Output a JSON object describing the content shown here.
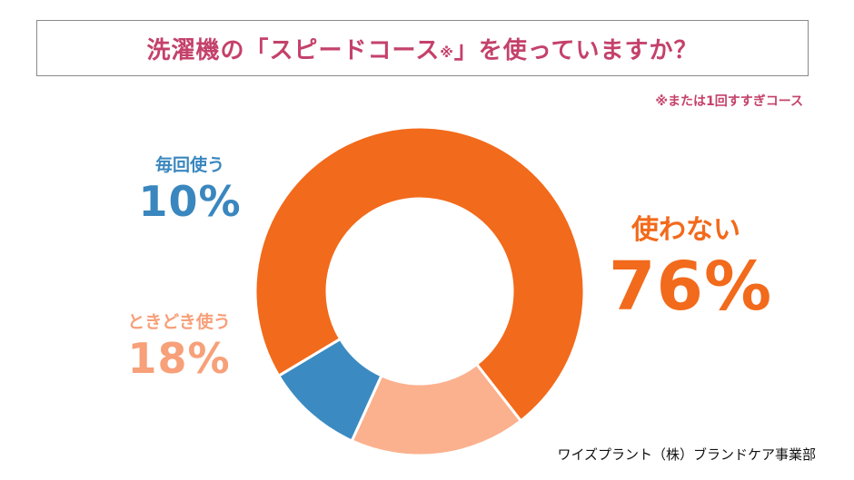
{
  "title": {
    "text": "洗濯機の「スピードコース",
    "mark": "※",
    "close": "」を使っていますか？"
  },
  "note": "※または1回すすぎコース",
  "source": "ワイズプラント（株）ブランドケア事業部",
  "chart_data": {
    "type": "pie",
    "donut": true,
    "title": "洗濯機の「スピードコース※」を使っていますか？",
    "slices": [
      {
        "label": "使わない",
        "value": 76,
        "value_label": "76%",
        "color": "#f26a1b"
      },
      {
        "label": "ときどき使う",
        "value": 18,
        "value_label": "18%",
        "color": "#fbb18e"
      },
      {
        "label": "毎回使う",
        "value": 10,
        "value_label": "10%",
        "color": "#3b8bc2"
      }
    ]
  }
}
